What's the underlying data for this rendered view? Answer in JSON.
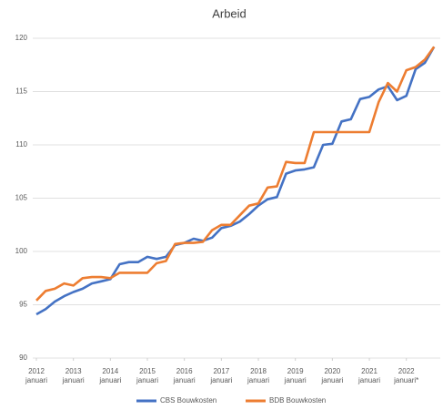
{
  "chart_data": {
    "type": "line",
    "title": "Arbeid",
    "x": [
      "2012-01",
      "2012-04",
      "2012-07",
      "2012-10",
      "2013-01",
      "2013-04",
      "2013-07",
      "2013-10",
      "2014-01",
      "2014-04",
      "2014-07",
      "2014-10",
      "2015-01",
      "2015-04",
      "2015-07",
      "2015-10",
      "2016-01",
      "2016-04",
      "2016-07",
      "2016-10",
      "2017-01",
      "2017-04",
      "2017-07",
      "2017-10",
      "2018-01",
      "2018-04",
      "2018-07",
      "2018-10",
      "2019-01",
      "2019-04",
      "2019-07",
      "2019-10",
      "2020-01",
      "2020-04",
      "2020-07",
      "2020-10",
      "2021-01",
      "2021-04",
      "2021-07",
      "2021-10",
      "2022-01",
      "2022-04",
      "2022-07",
      "2022-10"
    ],
    "series": [
      {
        "name": "CBS Bouwkosten",
        "color": "#4472c4",
        "values": [
          94.1,
          94.6,
          95.3,
          95.8,
          96.2,
          96.5,
          97.0,
          97.2,
          97.4,
          98.8,
          99.0,
          99.0,
          99.5,
          99.3,
          99.5,
          100.6,
          100.8,
          101.2,
          101.0,
          101.3,
          102.2,
          102.4,
          102.8,
          103.5,
          104.3,
          104.9,
          105.1,
          107.3,
          107.6,
          107.7,
          107.9,
          110.0,
          110.1,
          112.2,
          112.4,
          114.3,
          114.5,
          115.2,
          115.5,
          114.2,
          114.6,
          117.1,
          117.7,
          119.2
        ]
      },
      {
        "name": "BDB Bouwkosten",
        "color": "#ed7d31",
        "values": [
          95.4,
          96.3,
          96.5,
          97.0,
          96.8,
          97.5,
          97.6,
          97.6,
          97.5,
          98.0,
          98.0,
          98.0,
          98.0,
          98.9,
          99.1,
          100.7,
          100.8,
          100.8,
          100.9,
          102.0,
          102.5,
          102.5,
          103.4,
          104.3,
          104.5,
          106.0,
          106.1,
          108.4,
          108.3,
          108.3,
          111.2,
          111.2,
          111.2,
          111.2,
          111.2,
          111.2,
          111.2,
          114.0,
          115.8,
          115.0,
          117.0,
          117.3,
          118.0,
          119.2
        ]
      }
    ],
    "xlim": [
      "2012-01",
      "2022-12"
    ],
    "xticks": [
      {
        "value": "2012-01",
        "label": "2012 januari"
      },
      {
        "value": "2013-01",
        "label": "2013 januari"
      },
      {
        "value": "2014-01",
        "label": "2014 januari"
      },
      {
        "value": "2015-01",
        "label": "2015 januari"
      },
      {
        "value": "2016-01",
        "label": "2016 januari"
      },
      {
        "value": "2017-01",
        "label": "2017 januari"
      },
      {
        "value": "2018-01",
        "label": "2018 januari"
      },
      {
        "value": "2019-01",
        "label": "2019 januari"
      },
      {
        "value": "2020-01",
        "label": "2020 januari"
      },
      {
        "value": "2021-01",
        "label": "2021 januari"
      },
      {
        "value": "2022-01",
        "label": "2022 januari*"
      }
    ],
    "ylim": [
      90,
      120
    ],
    "yticks": [
      90,
      95,
      100,
      105,
      110,
      115,
      120
    ],
    "grid": true,
    "legend": "bottom"
  }
}
